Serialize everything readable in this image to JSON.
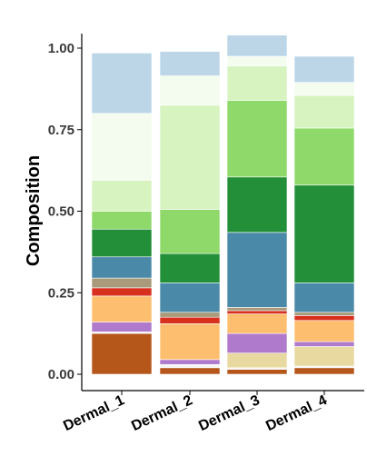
{
  "chart_data": {
    "type": "bar",
    "stacked": true,
    "title": "",
    "xlabel": "",
    "ylabel": "Composition",
    "ylim": [
      0,
      1.05
    ],
    "yticks": [
      "0.00",
      "0.25",
      "0.50",
      "0.75",
      "1.00"
    ],
    "categories": [
      "Dermal_1",
      "Dermal_2",
      "Dermal_3",
      "Dermal_4"
    ],
    "series": [
      {
        "color": "#b5561a",
        "values": [
          0.125,
          0.02,
          0.015,
          0.02
        ]
      },
      {
        "color": "#f5f5f5",
        "values": [
          0.005,
          0.01,
          0.005,
          0.005
        ]
      },
      {
        "color": "#e8d9a0",
        "values": [
          0.0,
          0.0,
          0.045,
          0.06
        ]
      },
      {
        "color": "#b07acc",
        "values": [
          0.03,
          0.015,
          0.06,
          0.015
        ]
      },
      {
        "color": "#fdbf6f",
        "values": [
          0.08,
          0.11,
          0.06,
          0.065
        ]
      },
      {
        "color": "#d7301f",
        "values": [
          0.025,
          0.02,
          0.01,
          0.015
        ]
      },
      {
        "color": "#a89a7a",
        "values": [
          0.03,
          0.015,
          0.01,
          0.01
        ]
      },
      {
        "color": "#4a8aa8",
        "values": [
          0.065,
          0.09,
          0.23,
          0.09
        ]
      },
      {
        "color": "#238f38",
        "values": [
          0.085,
          0.09,
          0.17,
          0.3
        ]
      },
      {
        "color": "#8fd86a",
        "values": [
          0.055,
          0.135,
          0.235,
          0.175
        ]
      },
      {
        "color": "#d6f3c0",
        "values": [
          0.095,
          0.32,
          0.105,
          0.1
        ]
      },
      {
        "color": "#f3fcee",
        "values": [
          0.205,
          0.09,
          0.03,
          0.04
        ]
      },
      {
        "color": "#bcd6e8",
        "values": [
          0.185,
          0.075,
          0.065,
          0.08
        ]
      }
    ]
  }
}
